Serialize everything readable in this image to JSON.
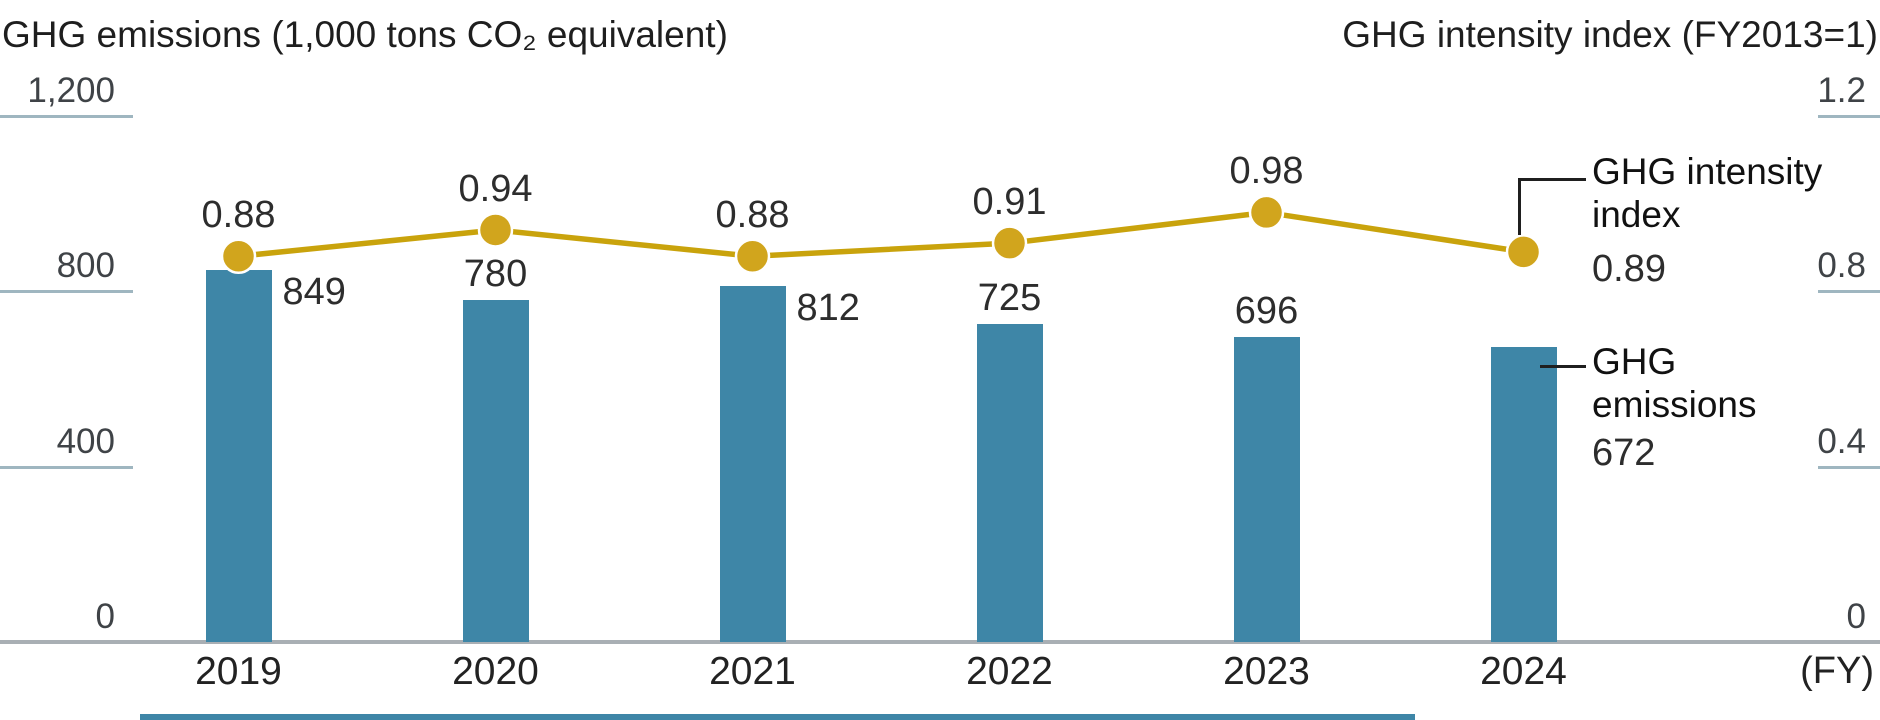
{
  "titles": {
    "left": "GHG emissions (1,000 tons CO₂ equivalent)",
    "right": "GHG intensity index (FY2013=1)"
  },
  "x_axis": {
    "unit_label": "(FY)"
  },
  "left_axis": {
    "tick_labels": [
      "1,200",
      "800",
      "400",
      "0"
    ],
    "range": [
      0,
      1200
    ]
  },
  "right_axis": {
    "tick_labels": [
      "1.2",
      "0.8",
      "0.4",
      "0"
    ],
    "range": [
      0,
      1.2
    ]
  },
  "annotations": {
    "intensity": {
      "line1": "GHG intensity",
      "line2": "index",
      "value": "0.89"
    },
    "emissions": {
      "line1": "GHG",
      "line2": "emissions",
      "value": "672"
    }
  },
  "chart_data": {
    "type": "bar+line",
    "title": "GHG emissions and GHG intensity index by fiscal year",
    "categories": [
      "2019",
      "2020",
      "2021",
      "2022",
      "2023",
      "2024"
    ],
    "series": [
      {
        "name": "GHG emissions",
        "type": "bar",
        "axis": "left",
        "values": [
          849,
          780,
          812,
          725,
          696,
          672
        ],
        "labels": [
          "849",
          "780",
          "812",
          "725",
          "696",
          "672"
        ]
      },
      {
        "name": "GHG intensity index",
        "type": "line",
        "axis": "right",
        "values": [
          0.88,
          0.94,
          0.88,
          0.91,
          0.98,
          0.89
        ],
        "labels": [
          "0.88",
          "0.94",
          "0.88",
          "0.91",
          "0.98",
          "0.89"
        ]
      }
    ],
    "left_ylim": [
      0,
      1200
    ],
    "right_ylim": [
      0,
      1.2
    ],
    "grid": "off",
    "legend_position": "right-inline-annotations"
  },
  "colors": {
    "bar": "#3E86A7",
    "line": "#C9A30C",
    "marker": "#D1A51D",
    "tick_line": "#9fb6c0",
    "baseline": "#a9afb4",
    "text": "#1e1e1e",
    "tick_text": "#3f4347"
  }
}
